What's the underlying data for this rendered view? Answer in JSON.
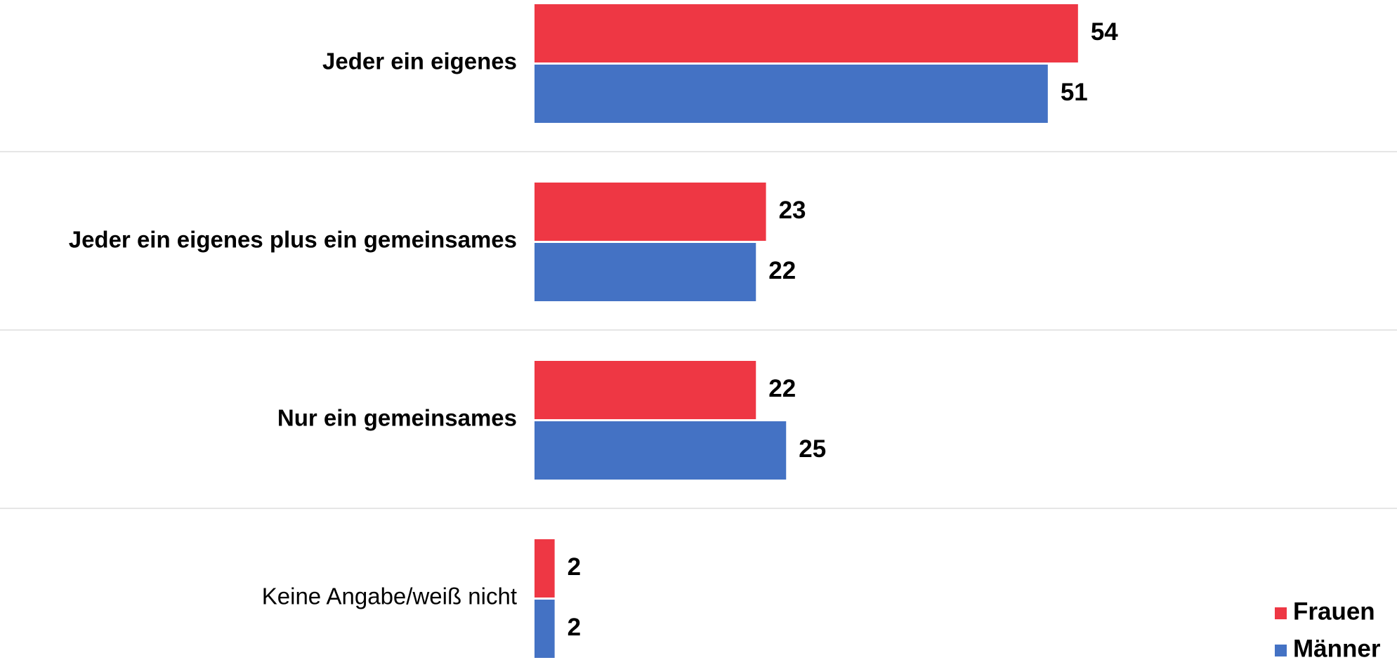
{
  "chart_data": {
    "type": "bar",
    "orientation": "horizontal",
    "categories": [
      "Jeder ein eigenes",
      "Jeder ein eigenes plus ein gemeinsames",
      "Nur ein gemeinsames",
      "Keine Angabe/weiß nicht"
    ],
    "series": [
      {
        "name": "Frauen",
        "color": "#ee3744",
        "values": [
          54,
          23,
          22,
          2
        ]
      },
      {
        "name": "Männer",
        "color": "#4472c4",
        "values": [
          51,
          22,
          25,
          2
        ]
      }
    ],
    "legend": "bottom-right"
  }
}
